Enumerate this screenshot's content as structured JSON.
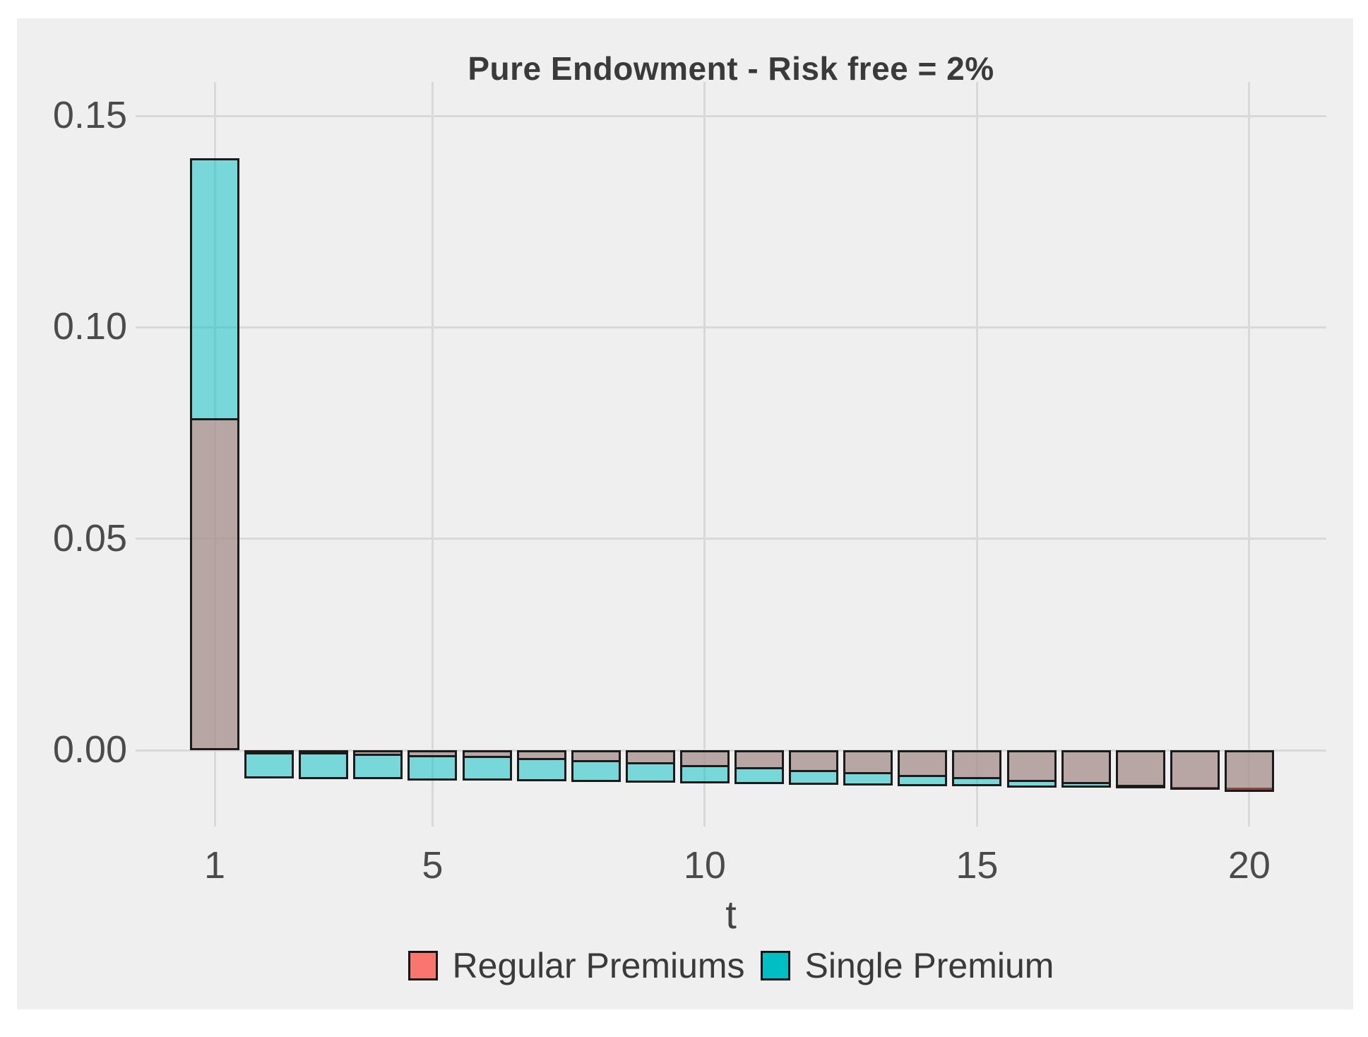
{
  "title": "Pure Endowment - Risk free = 2%",
  "axes": {
    "x_label": "t",
    "x_ticks": [
      {
        "label": "1",
        "value": 1
      },
      {
        "label": "5",
        "value": 5
      },
      {
        "label": "10",
        "value": 10
      },
      {
        "label": "15",
        "value": 15
      },
      {
        "label": "20",
        "value": 20
      }
    ],
    "y_ticks": [
      {
        "label": "0.00",
        "value": 0.0
      },
      {
        "label": "0.05",
        "value": 0.05
      },
      {
        "label": "0.10",
        "value": 0.1
      },
      {
        "label": "0.15",
        "value": 0.15
      }
    ]
  },
  "legend": {
    "items": [
      {
        "label": "Regular Premiums",
        "color": "#F8766D"
      },
      {
        "label": "Single Premium",
        "color": "#00BFC4"
      }
    ]
  },
  "style": {
    "figure_background": "#EFEFEF",
    "gridline_color": "#D9D9D9",
    "bar_border_color": "#1b1b1b",
    "bar_alpha": 0.5,
    "blended_overlap_color": "#B8A7A4",
    "teal_bar_on_background": "#78D7DA"
  },
  "chart_data": {
    "type": "bar",
    "position": "identity",
    "bar_alpha": 0.5,
    "title": "Pure Endowment - Risk free = 2%",
    "xlabel": "t",
    "ylabel": "",
    "x": [
      1,
      2,
      3,
      4,
      5,
      6,
      7,
      8,
      9,
      10,
      11,
      12,
      13,
      14,
      15,
      16,
      17,
      18,
      19,
      20
    ],
    "series": [
      {
        "name": "Regular Premiums",
        "color": "#F8766D",
        "values": [
          0.0785,
          -0.0004,
          -0.0008,
          -0.0013,
          -0.0016,
          -0.0019,
          -0.0024,
          -0.0029,
          -0.0034,
          -0.004,
          -0.0045,
          -0.0051,
          -0.0057,
          -0.0063,
          -0.0068,
          -0.0075,
          -0.0081,
          -0.0087,
          -0.0093,
          -0.0099
        ]
      },
      {
        "name": "Single Premium",
        "color": "#00BFC4",
        "values": [
          0.14,
          -0.0066,
          -0.0068,
          -0.0069,
          -0.0071,
          -0.0072,
          -0.0074,
          -0.0076,
          -0.0077,
          -0.0079,
          -0.008,
          -0.0082,
          -0.0083,
          -0.0085,
          -0.0086,
          -0.0088,
          -0.0089,
          -0.0091,
          -0.0092,
          -0.0094
        ]
      }
    ],
    "draw_order": [
      "Single Premium",
      "Regular Premiums"
    ],
    "xlim": [
      -0.5,
      21.4
    ],
    "ylim": [
      -0.018,
      0.158
    ],
    "grid": "major-only",
    "legend_position": "bottom"
  }
}
